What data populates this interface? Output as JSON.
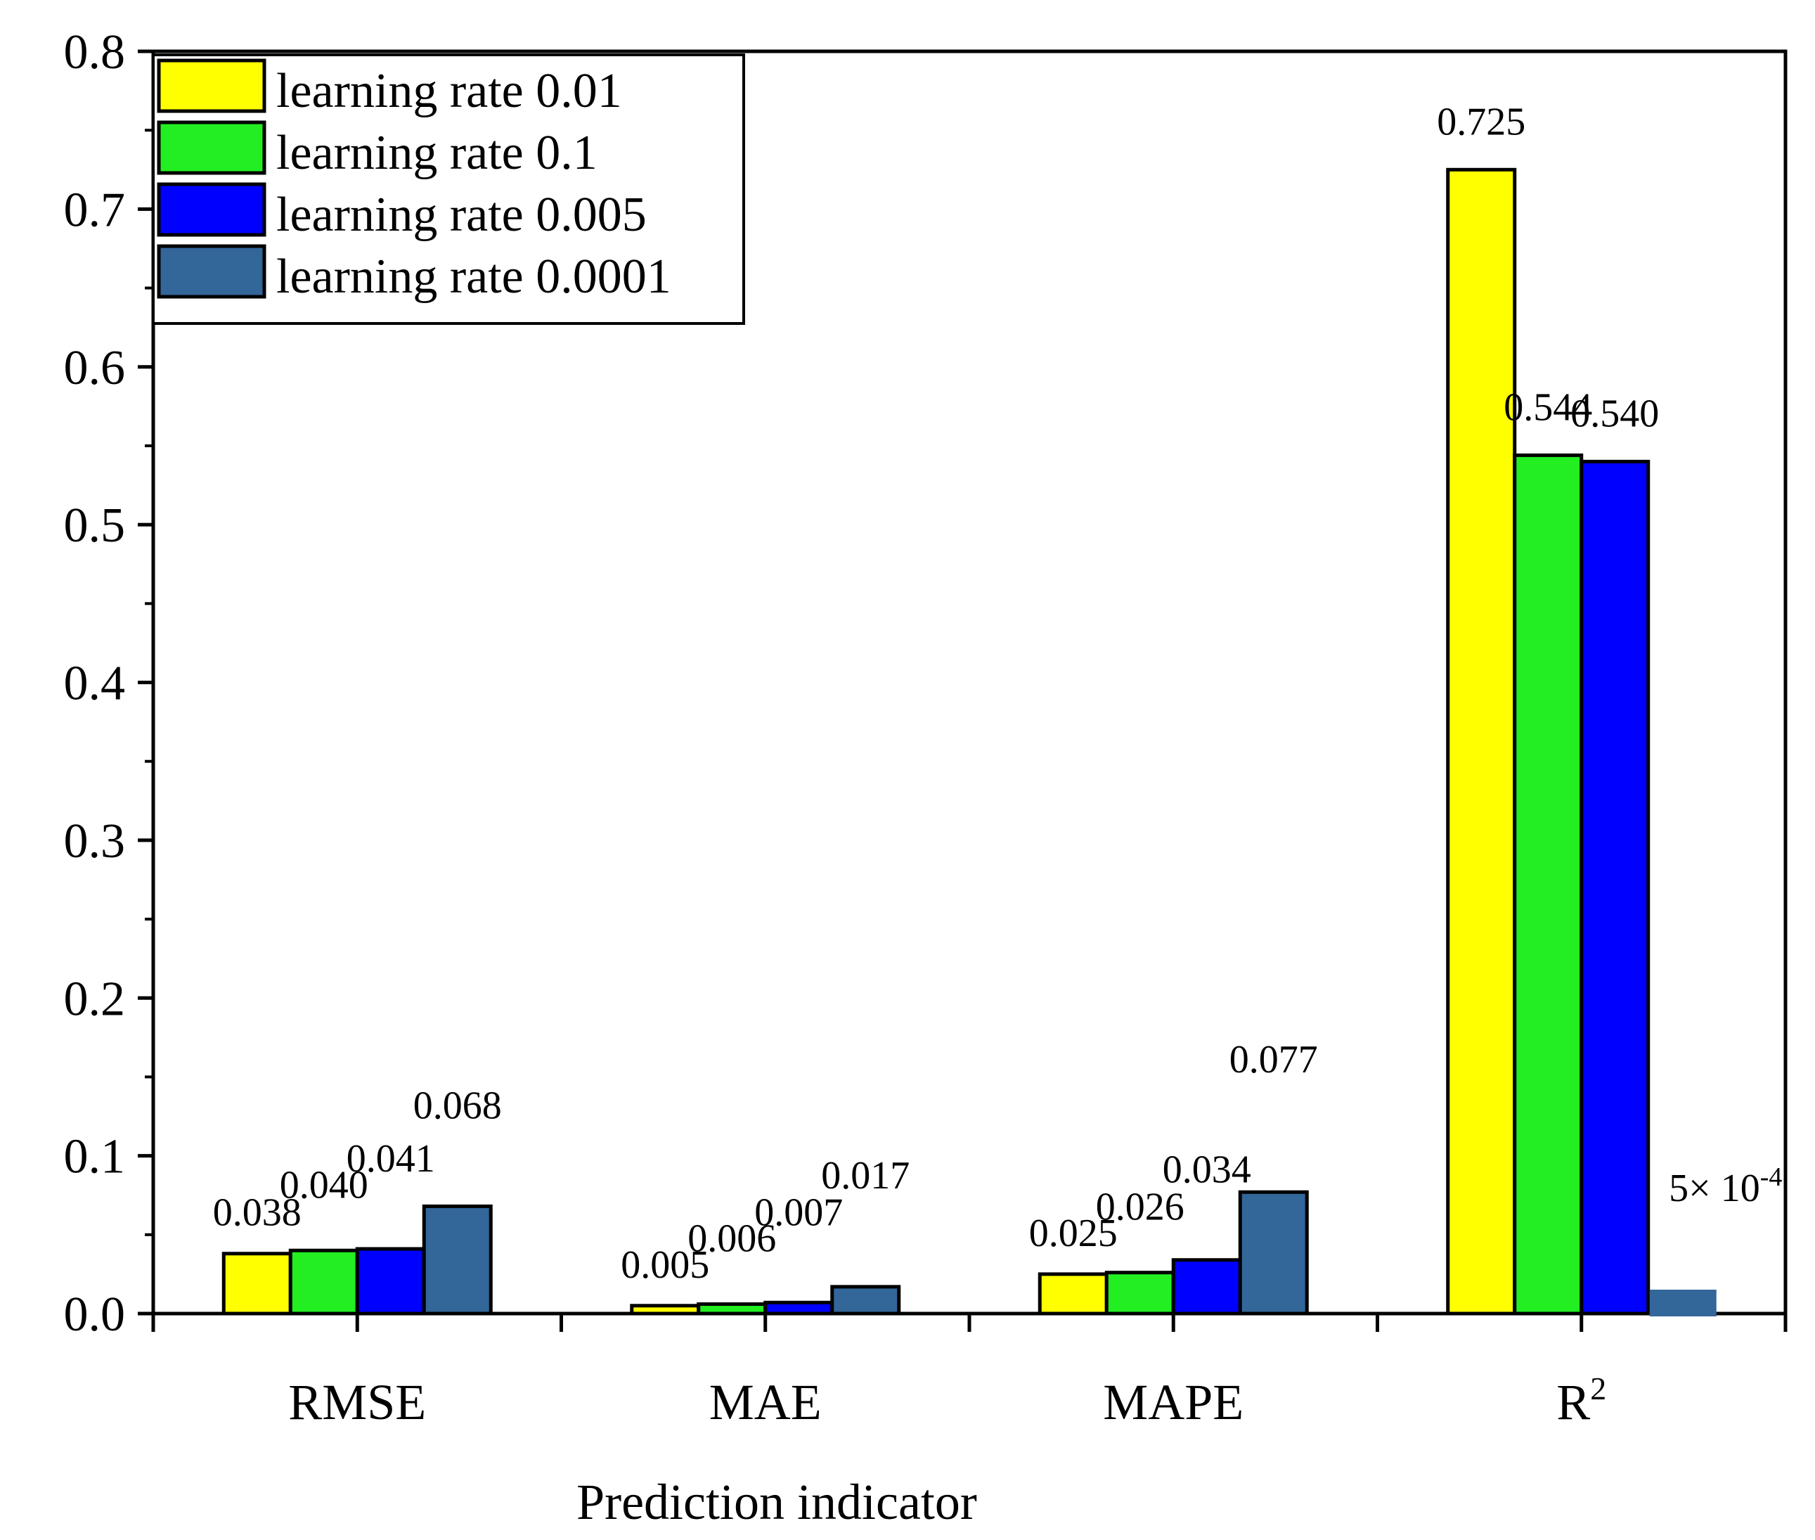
{
  "chart_data": {
    "type": "bar",
    "xlabel": "Prediction indicator",
    "ylabel": "",
    "ylim": [
      0,
      0.8
    ],
    "yticks": [
      "0.0",
      "0.1",
      "0.2",
      "0.3",
      "0.4",
      "0.5",
      "0.6",
      "0.7",
      "0.8"
    ],
    "categories": [
      "RMSE",
      "MAE",
      "MAPE",
      "R"
    ],
    "category_superscripts": [
      "",
      "",
      "",
      "2"
    ],
    "legend_position": "top-left",
    "series": [
      {
        "name": "learning rate 0.01",
        "color": "#ffff00",
        "values": [
          0.038,
          0.005,
          0.025,
          0.725
        ],
        "labels": [
          "0.038",
          "0.005",
          "0.025",
          "0.725"
        ]
      },
      {
        "name": "learning rate 0.1",
        "color": "#22ee22",
        "values": [
          0.04,
          0.006,
          0.026,
          0.544
        ],
        "labels": [
          "0.040",
          "0.006",
          "0.026",
          "0.544"
        ]
      },
      {
        "name": "learning rate 0.005",
        "color": "#0000ff",
        "values": [
          0.041,
          0.007,
          0.034,
          0.54
        ],
        "labels": [
          "0.041",
          "0.007",
          "0.034",
          "0.540"
        ]
      },
      {
        "name": "learning rate 0.0001",
        "color": "#336699",
        "values": [
          0.068,
          0.017,
          0.077,
          0.0005
        ],
        "labels": [
          "0.068",
          "0.017",
          "0.077",
          "5× 10"
        ]
      }
    ],
    "special_label_superscript": "-4"
  }
}
